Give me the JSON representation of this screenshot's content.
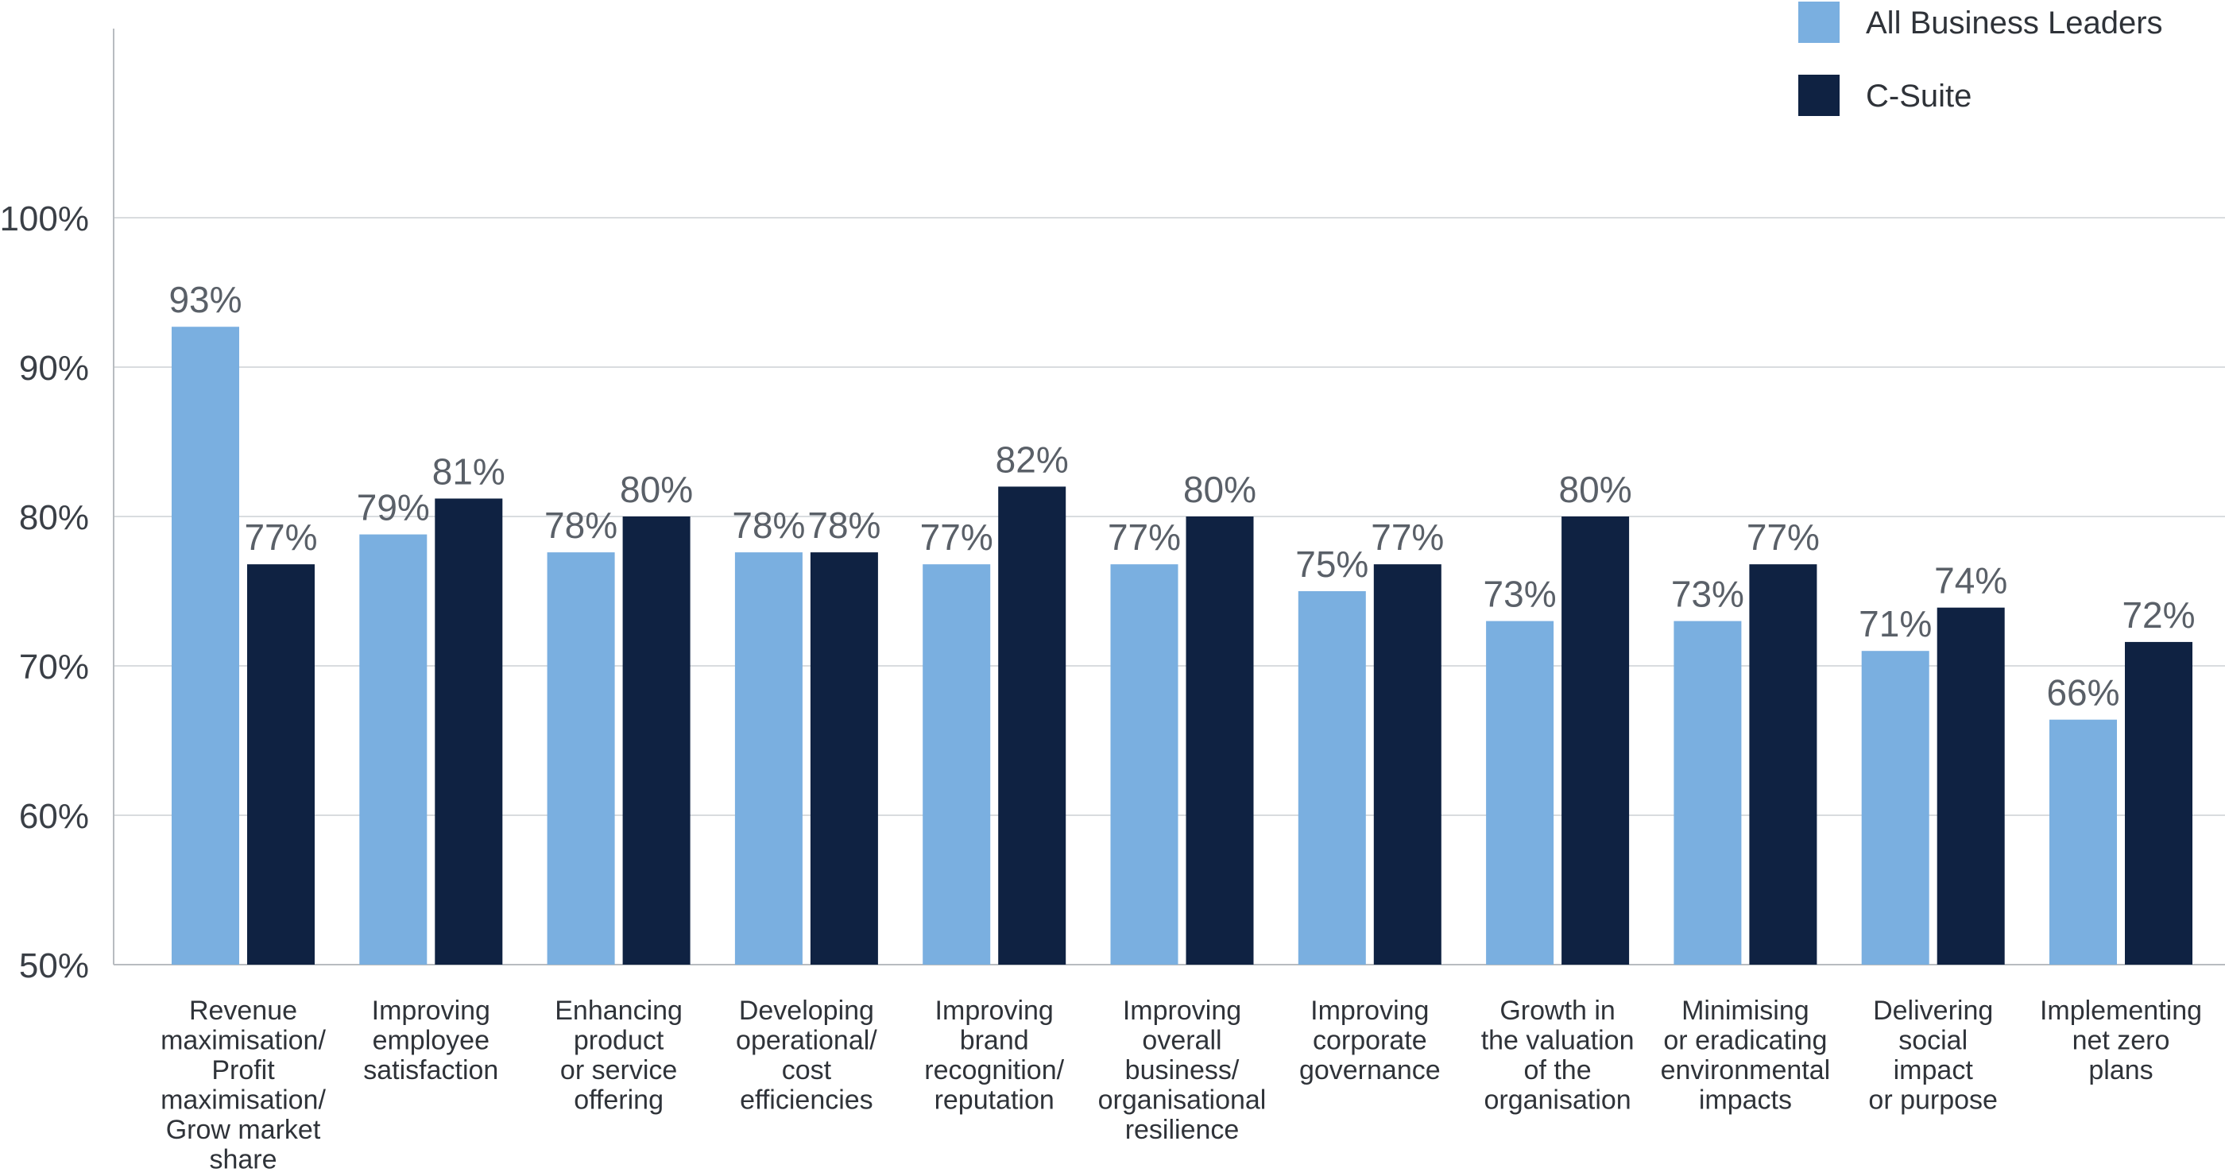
{
  "chart_data": {
    "type": "bar",
    "ylim": [
      50,
      100
    ],
    "yticks": [
      50,
      60,
      70,
      80,
      90,
      100
    ],
    "ytick_labels": [
      "50%",
      "60%",
      "70%",
      "80%",
      "90%",
      "100%"
    ],
    "grid": true,
    "legend_position": "top-right",
    "categories": [
      [
        "Revenue",
        "maximisation/",
        "Profit",
        "maximisation/",
        "Grow market",
        "share"
      ],
      [
        "Improving",
        "employee",
        "satisfaction"
      ],
      [
        "Enhancing",
        "product",
        "or service",
        "offering"
      ],
      [
        "Developing",
        "operational/",
        "cost",
        "efficiencies"
      ],
      [
        "Improving",
        "brand",
        "recognition/",
        "reputation"
      ],
      [
        "Improving",
        "overall",
        "business/",
        "organisational",
        "resilience"
      ],
      [
        "Improving",
        "corporate",
        "governance"
      ],
      [
        "Growth in",
        "the valuation",
        "of the",
        "organisation"
      ],
      [
        "Minimising",
        "or eradicating",
        "environmental",
        "impacts"
      ],
      [
        "Delivering",
        "social",
        "impact",
        "or purpose"
      ],
      [
        "Implementing",
        "net zero",
        "plans"
      ]
    ],
    "series": [
      {
        "name": "All Business Leaders",
        "color": "#7aafe0",
        "values": [
          92.7,
          78.8,
          77.6,
          77.6,
          76.8,
          76.8,
          75.0,
          73.0,
          73.0,
          71.0,
          66.4
        ],
        "labels": [
          "93%",
          "79%",
          "78%",
          "78%",
          "77%",
          "77%",
          "75%",
          "73%",
          "73%",
          "71%",
          "66%"
        ]
      },
      {
        "name": "C-Suite",
        "color": "#0f2242",
        "values": [
          76.8,
          81.2,
          80.0,
          77.6,
          82.0,
          80.0,
          76.8,
          80.0,
          76.8,
          73.9,
          71.6
        ],
        "labels": [
          "77%",
          "81%",
          "80%",
          "78%",
          "82%",
          "80%",
          "77%",
          "80%",
          "77%",
          "74%",
          "72%"
        ]
      }
    ]
  },
  "colors": {
    "grid": "#d9dcdf",
    "axis": "#b8bcc0"
  }
}
